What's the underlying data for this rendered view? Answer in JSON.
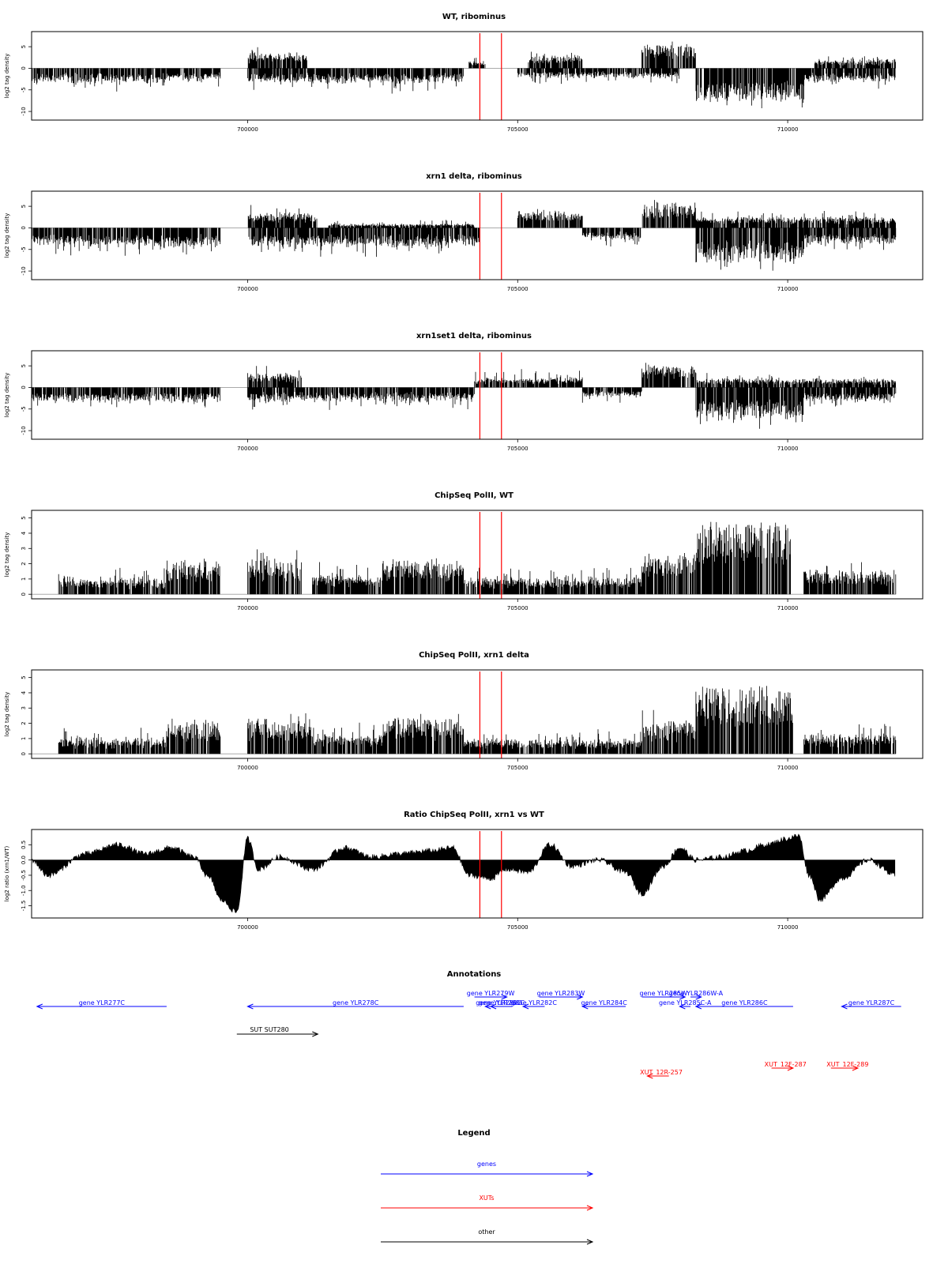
{
  "chart_data": [
    {
      "type": "bar",
      "title": "WT, ribominus",
      "ylabel": "log2 tag density",
      "xlim": [
        696000,
        712500
      ],
      "ylim": [
        -12,
        8.5
      ],
      "yticks": [
        5,
        0,
        -5,
        -10
      ],
      "xticks": [
        700000,
        705000,
        710000
      ],
      "highlight_x": [
        704300,
        704700
      ],
      "segments": [
        {
          "x": [
            696000,
            698500
          ],
          "sign": -1,
          "base": 2.5,
          "amp": 3.5
        },
        {
          "x": [
            698500,
            699500
          ],
          "sign": -1,
          "base": 2,
          "amp": 3
        },
        {
          "x": [
            700000,
            701100
          ],
          "sign": 1,
          "base": 2.5,
          "amp": 3.5
        },
        {
          "x": [
            700000,
            704000
          ],
          "sign": -1,
          "base": 2.5,
          "amp": 3.5
        },
        {
          "x": [
            704100,
            704400
          ],
          "sign": 1,
          "base": 1,
          "amp": 2
        },
        {
          "x": [
            705200,
            706200
          ],
          "sign": 1,
          "base": 2.5,
          "amp": 2
        },
        {
          "x": [
            705000,
            708000
          ],
          "sign": -1,
          "base": 1.5,
          "amp": 2.5
        },
        {
          "x": [
            707300,
            708300
          ],
          "sign": 1,
          "base": 5,
          "amp": 2.5
        },
        {
          "x": [
            708300,
            710300
          ],
          "sign": -1,
          "base": 7,
          "amp": 3
        },
        {
          "x": [
            710300,
            712000
          ],
          "sign": -1,
          "base": 2.5,
          "amp": 2.5
        },
        {
          "x": [
            710500,
            712000
          ],
          "sign": 1,
          "base": 1.5,
          "amp": 2
        }
      ]
    },
    {
      "type": "bar",
      "title": "xrn1 delta, ribominus",
      "ylabel": "log2 tag density",
      "xlim": [
        696000,
        712500
      ],
      "ylim": [
        -12,
        8.5
      ],
      "yticks": [
        5,
        0,
        -5,
        -10
      ],
      "xticks": [
        700000,
        705000,
        710000
      ],
      "highlight_x": [
        704300,
        704700
      ],
      "segments": [
        {
          "x": [
            696000,
            699500
          ],
          "sign": -1,
          "base": 3.5,
          "amp": 3.5
        },
        {
          "x": [
            700000,
            701300
          ],
          "sign": 1,
          "base": 2.5,
          "amp": 3.5
        },
        {
          "x": [
            700000,
            704300
          ],
          "sign": -1,
          "base": 3.5,
          "amp": 3.5
        },
        {
          "x": [
            701500,
            704200
          ],
          "sign": 1,
          "base": 0.5,
          "amp": 1.5
        },
        {
          "x": [
            705000,
            706200
          ],
          "sign": 1,
          "base": 3,
          "amp": 3
        },
        {
          "x": [
            706200,
            707300
          ],
          "sign": -1,
          "base": 2,
          "amp": 3
        },
        {
          "x": [
            707300,
            708300
          ],
          "sign": 1,
          "base": 5,
          "amp": 2.5
        },
        {
          "x": [
            708300,
            710300
          ],
          "sign": -1,
          "base": 7,
          "amp": 3.5
        },
        {
          "x": [
            708300,
            712000
          ],
          "sign": 1,
          "base": 2,
          "amp": 2.5
        },
        {
          "x": [
            710300,
            712000
          ],
          "sign": -1,
          "base": 3,
          "amp": 3
        }
      ]
    },
    {
      "type": "bar",
      "title": "xrn1set1 delta, ribominus",
      "ylabel": "log2 tag density",
      "xlim": [
        696000,
        712500
      ],
      "ylim": [
        -12,
        8.5
      ],
      "yticks": [
        5,
        0,
        -5,
        -10
      ],
      "xticks": [
        700000,
        705000,
        710000
      ],
      "highlight_x": [
        704300,
        704700
      ],
      "segments": [
        {
          "x": [
            696000,
            699500
          ],
          "sign": -1,
          "base": 2.5,
          "amp": 3
        },
        {
          "x": [
            700000,
            701000
          ],
          "sign": 1,
          "base": 2.5,
          "amp": 3
        },
        {
          "x": [
            700000,
            704200
          ],
          "sign": -1,
          "base": 2.5,
          "amp": 3
        },
        {
          "x": [
            704200,
            706200
          ],
          "sign": 1,
          "base": 1.5,
          "amp": 3
        },
        {
          "x": [
            706200,
            707300
          ],
          "sign": -1,
          "base": 1.5,
          "amp": 2.5
        },
        {
          "x": [
            707300,
            708300
          ],
          "sign": 1,
          "base": 4.5,
          "amp": 2.5
        },
        {
          "x": [
            708300,
            710300
          ],
          "sign": -1,
          "base": 6.5,
          "amp": 3.5
        },
        {
          "x": [
            708300,
            712000
          ],
          "sign": 1,
          "base": 1.5,
          "amp": 2
        },
        {
          "x": [
            710300,
            712000
          ],
          "sign": -1,
          "base": 2.5,
          "amp": 2.5
        }
      ]
    },
    {
      "type": "bar",
      "title": "ChipSeq PolII, WT",
      "ylabel": "log2 tag density",
      "xlim": [
        696000,
        712500
      ],
      "ylim": [
        -0.3,
        5.5
      ],
      "yticks": [
        0,
        1,
        2,
        3,
        4,
        5
      ],
      "xticks": [
        700000,
        705000,
        710000
      ],
      "highlight_x": [
        704300,
        704700
      ],
      "segments": [
        {
          "x": [
            696500,
            698500
          ],
          "sign": 1,
          "base": 0.8,
          "amp": 1.2
        },
        {
          "x": [
            698500,
            699500
          ],
          "sign": 1,
          "base": 1.8,
          "amp": 1.2
        },
        {
          "x": [
            700000,
            701000
          ],
          "sign": 1,
          "base": 2,
          "amp": 1.2
        },
        {
          "x": [
            701200,
            702500
          ],
          "sign": 1,
          "base": 1,
          "amp": 1.3
        },
        {
          "x": [
            702500,
            704000
          ],
          "sign": 1,
          "base": 2,
          "amp": 1
        },
        {
          "x": [
            704000,
            707300
          ],
          "sign": 1,
          "base": 0.8,
          "amp": 1.2
        },
        {
          "x": [
            707300,
            708300
          ],
          "sign": 1,
          "base": 2.2,
          "amp": 1.5
        },
        {
          "x": [
            708300,
            710100
          ],
          "sign": 1,
          "base": 4.6,
          "amp": 0.5
        },
        {
          "x": [
            710300,
            712000
          ],
          "sign": 1,
          "base": 1.3,
          "amp": 1
        }
      ]
    },
    {
      "type": "bar",
      "title": "ChipSeq PolII, xrn1 delta",
      "ylabel": "log2 tag density",
      "xlim": [
        696000,
        712500
      ],
      "ylim": [
        -0.3,
        5.5
      ],
      "yticks": [
        0,
        1,
        2,
        3,
        4,
        5
      ],
      "xticks": [
        700000,
        705000,
        710000
      ],
      "highlight_x": [
        704300,
        704700
      ],
      "segments": [
        {
          "x": [
            696500,
            698500
          ],
          "sign": 1,
          "base": 0.8,
          "amp": 1
        },
        {
          "x": [
            698500,
            699500
          ],
          "sign": 1,
          "base": 1.9,
          "amp": 0.9
        },
        {
          "x": [
            700000,
            701200
          ],
          "sign": 1,
          "base": 2,
          "amp": 1
        },
        {
          "x": [
            701200,
            702500
          ],
          "sign": 1,
          "base": 1,
          "amp": 1.2
        },
        {
          "x": [
            702500,
            704000
          ],
          "sign": 1,
          "base": 2.1,
          "amp": 0.9
        },
        {
          "x": [
            704000,
            707300
          ],
          "sign": 1,
          "base": 0.7,
          "amp": 1
        },
        {
          "x": [
            707300,
            708300
          ],
          "sign": 1,
          "base": 1.8,
          "amp": 1.2
        },
        {
          "x": [
            708300,
            710100
          ],
          "sign": 1,
          "base": 4.4,
          "amp": 0.5
        },
        {
          "x": [
            710300,
            712000
          ],
          "sign": 1,
          "base": 1,
          "amp": 1.2
        }
      ]
    },
    {
      "type": "area",
      "title": "Ratio ChipSeq PolII, xrn1 vs WT",
      "ylabel": "log2 ratio (xrn1/WT)",
      "xlim": [
        696000,
        712500
      ],
      "ylim": [
        -1.9,
        1.0
      ],
      "yticks": [
        0.5,
        0.0,
        -0.5,
        -1.0,
        -1.5
      ],
      "ytick_labels": [
        "0.5",
        "0.0",
        "-0.5",
        "-1.0",
        "-1.5"
      ],
      "xticks": [
        700000,
        705000,
        710000
      ],
      "highlight_x": [
        704300,
        704700
      ],
      "x": [
        696000,
        696300,
        697000,
        697600,
        698100,
        698600,
        699000,
        699300,
        699500,
        699800,
        700000,
        700200,
        700600,
        701200,
        701800,
        702300,
        702800,
        703400,
        703800,
        704100,
        704500,
        704800,
        705200,
        705600,
        706000,
        706500,
        707000,
        707300,
        707700,
        708000,
        708300,
        708800,
        709200,
        709600,
        710000,
        710200,
        710400,
        710600,
        711000,
        711500,
        712000
      ],
      "y": [
        0.0,
        -0.5,
        0.2,
        0.5,
        0.2,
        0.4,
        0.1,
        -0.6,
        -1.3,
        -1.7,
        0.7,
        -0.3,
        0.1,
        -0.3,
        0.4,
        0.1,
        0.2,
        0.3,
        0.4,
        -0.5,
        -0.6,
        -0.3,
        -0.4,
        0.5,
        -0.2,
        0.0,
        -0.4,
        -1.1,
        -0.2,
        0.4,
        0.0,
        0.1,
        0.3,
        0.5,
        0.7,
        0.8,
        -0.5,
        -1.3,
        -0.6,
        0.0,
        -0.5
      ]
    }
  ],
  "annotations": {
    "title": "Annotations",
    "genes": [
      {
        "label": "gene YLR277C",
        "x1": 696100,
        "x2": 698500,
        "dir": "left",
        "row": 1
      },
      {
        "label": "gene YLR278C",
        "x1": 700000,
        "x2": 704000,
        "dir": "left",
        "row": 1
      },
      {
        "label": "gene YLR279W",
        "x1": 704200,
        "x2": 704800,
        "dir": "right",
        "row": 0
      },
      {
        "label": "gene YLR280C",
        "x1": 704400,
        "x2": 704900,
        "dir": "left",
        "row": 1
      },
      {
        "label": "gene YLR281C",
        "x1": 704500,
        "x2": 704900,
        "dir": "left",
        "row": 1
      },
      {
        "label": "gene YLR282C",
        "x1": 705100,
        "x2": 705500,
        "dir": "left",
        "row": 1
      },
      {
        "label": "gene YLR283W",
        "x1": 705400,
        "x2": 706200,
        "dir": "right",
        "row": 0
      },
      {
        "label": "gene YLR284C",
        "x1": 706200,
        "x2": 707000,
        "dir": "left",
        "row": 1
      },
      {
        "label": "gene YLR285W",
        "x1": 707300,
        "x2": 708100,
        "dir": "right",
        "row": 0
      },
      {
        "label": "gene YLR285C-A",
        "x1": 708000,
        "x2": 708200,
        "dir": "left",
        "row": 1
      },
      {
        "label": "gene YLR286W-A",
        "x1": 708200,
        "x2": 708400,
        "dir": "right",
        "row": 0
      },
      {
        "label": "gene YLR286C",
        "x1": 708300,
        "x2": 710100,
        "dir": "left",
        "row": 1
      },
      {
        "label": "gene YLR287C",
        "x1": 711000,
        "x2": 712100,
        "dir": "left",
        "row": 1
      }
    ],
    "other": [
      {
        "label": "SUT SUT280",
        "x1": 699800,
        "x2": 701300,
        "dir": "right"
      }
    ],
    "xuts": [
      {
        "label": "XUT_12R-257",
        "x1": 707400,
        "x2": 707800,
        "dir": "left",
        "row": 1
      },
      {
        "label": "XUT_12F-287",
        "x1": 709700,
        "x2": 710100,
        "dir": "right",
        "row": 0
      },
      {
        "label": "XUT_12F-289",
        "x1": 710800,
        "x2": 711300,
        "dir": "right",
        "row": 0
      }
    ]
  },
  "legend": {
    "title": "Legend",
    "items": [
      {
        "label": "genes",
        "color": "#0000ff"
      },
      {
        "label": "XUTs",
        "color": "#ff0000"
      },
      {
        "label": "other",
        "color": "#000000"
      }
    ]
  },
  "colors": {
    "highlight": "#ff0000",
    "gene": "#0000ff",
    "xut": "#ff0000",
    "other": "#000000",
    "plot_fill": "#000000",
    "zero_line": "#aaaaaa"
  }
}
